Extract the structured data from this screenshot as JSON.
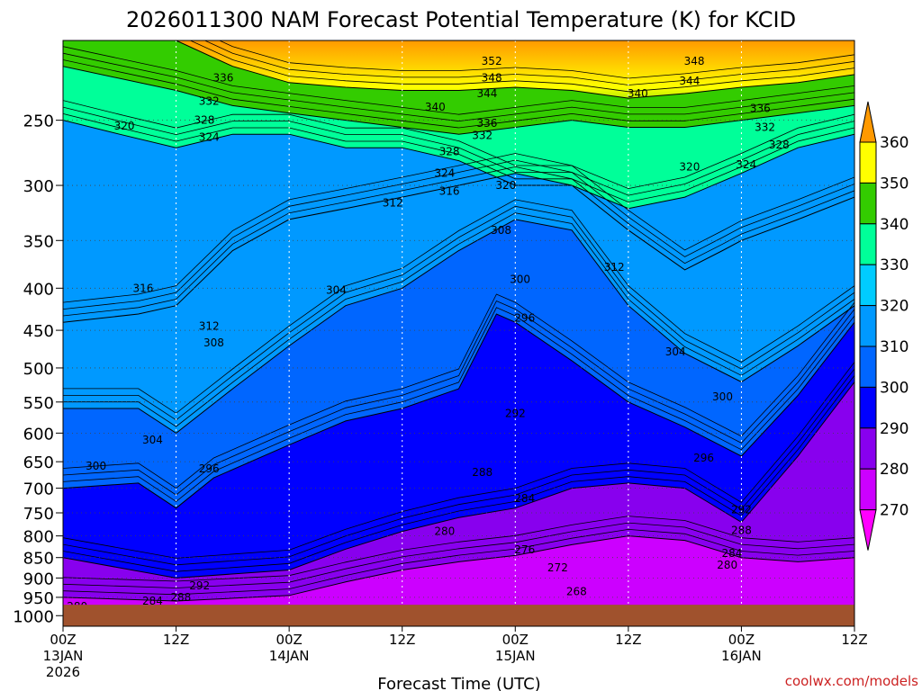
{
  "chart_data": {
    "type": "heatmap",
    "title": "2026011300 NAM Forecast Potential Temperature (K) for KCID",
    "xlabel": "Forecast Time (UTC)",
    "ylabel": "",
    "watermark": "coolwx.com/models",
    "x_ticks": [
      {
        "hour": 0,
        "label": "00Z",
        "sub1": "13JAN",
        "sub2": "2026"
      },
      {
        "hour": 12,
        "label": "12Z",
        "sub1": "",
        "sub2": ""
      },
      {
        "hour": 24,
        "label": "00Z",
        "sub1": "14JAN",
        "sub2": ""
      },
      {
        "hour": 36,
        "label": "12Z",
        "sub1": "",
        "sub2": ""
      },
      {
        "hour": 48,
        "label": "00Z",
        "sub1": "15JAN",
        "sub2": ""
      },
      {
        "hour": 60,
        "label": "12Z",
        "sub1": "",
        "sub2": ""
      },
      {
        "hour": 72,
        "label": "00Z",
        "sub1": "16JAN",
        "sub2": ""
      },
      {
        "hour": 84,
        "label": "12Z",
        "sub1": "",
        "sub2": ""
      }
    ],
    "xlim": [
      0,
      84
    ],
    "y_ticks": [
      250,
      300,
      350,
      400,
      450,
      500,
      550,
      600,
      650,
      700,
      750,
      800,
      850,
      900,
      950,
      1000
    ],
    "ylim": [
      1030,
      200
    ],
    "surface_pressure_mb": 970,
    "colorbar": {
      "labels": [
        360,
        350,
        340,
        330,
        320,
        310,
        300,
        290,
        280,
        270
      ],
      "colors": [
        "#ff9900",
        "#ffff00",
        "#33cc00",
        "#00ff99",
        "#00ccff",
        "#0099ff",
        "#0066ff",
        "#0000ff",
        "#8800ee",
        "#cc00ff",
        "#ff00ff"
      ]
    },
    "series": [
      {
        "name": "280",
        "value": 280,
        "points": [
          [
            0,
            950
          ],
          [
            12,
            960
          ],
          [
            24,
            945
          ],
          [
            30,
            910
          ],
          [
            36,
            880
          ],
          [
            42,
            860
          ],
          [
            48,
            845
          ],
          [
            54,
            820
          ],
          [
            60,
            800
          ],
          [
            66,
            810
          ],
          [
            72,
            850
          ],
          [
            78,
            860
          ],
          [
            84,
            850
          ]
        ]
      },
      {
        "name": "288",
        "value": 288,
        "points": [
          [
            0,
            850
          ],
          [
            12,
            900
          ],
          [
            24,
            880
          ],
          [
            30,
            830
          ],
          [
            36,
            790
          ],
          [
            42,
            760
          ],
          [
            48,
            740
          ],
          [
            54,
            700
          ],
          [
            60,
            690
          ],
          [
            66,
            700
          ],
          [
            72,
            770
          ],
          [
            78,
            640
          ],
          [
            84,
            520
          ]
        ]
      },
      {
        "name": "296",
        "value": 296,
        "points": [
          [
            0,
            700
          ],
          [
            8,
            690
          ],
          [
            12,
            740
          ],
          [
            16,
            680
          ],
          [
            24,
            620
          ],
          [
            30,
            580
          ],
          [
            36,
            560
          ],
          [
            42,
            530
          ],
          [
            46,
            430
          ],
          [
            48,
            440
          ],
          [
            54,
            490
          ],
          [
            60,
            550
          ],
          [
            66,
            590
          ],
          [
            72,
            640
          ],
          [
            78,
            540
          ],
          [
            84,
            440
          ]
        ]
      },
      {
        "name": "304",
        "value": 304,
        "points": [
          [
            0,
            560
          ],
          [
            8,
            560
          ],
          [
            12,
            600
          ],
          [
            18,
            530
          ],
          [
            24,
            470
          ],
          [
            30,
            420
          ],
          [
            36,
            400
          ],
          [
            42,
            360
          ],
          [
            48,
            330
          ],
          [
            54,
            340
          ],
          [
            60,
            420
          ],
          [
            66,
            480
          ],
          [
            72,
            520
          ],
          [
            78,
            470
          ],
          [
            84,
            420
          ]
        ]
      },
      {
        "name": "312",
        "value": 312,
        "points": [
          [
            0,
            440
          ],
          [
            8,
            430
          ],
          [
            12,
            420
          ],
          [
            18,
            360
          ],
          [
            24,
            330
          ],
          [
            30,
            320
          ],
          [
            36,
            310
          ],
          [
            42,
            300
          ],
          [
            48,
            290
          ],
          [
            54,
            300
          ],
          [
            60,
            340
          ],
          [
            66,
            380
          ],
          [
            70,
            360
          ],
          [
            72,
            350
          ],
          [
            78,
            330
          ],
          [
            84,
            310
          ]
        ]
      },
      {
        "name": "320",
        "value": 320,
        "points": [
          [
            0,
            250
          ],
          [
            6,
            260
          ],
          [
            12,
            270
          ],
          [
            18,
            260
          ],
          [
            24,
            260
          ],
          [
            30,
            270
          ],
          [
            36,
            270
          ],
          [
            42,
            280
          ],
          [
            48,
            300
          ],
          [
            54,
            300
          ],
          [
            60,
            320
          ],
          [
            66,
            310
          ],
          [
            72,
            290
          ],
          [
            78,
            270
          ],
          [
            84,
            260
          ]
        ]
      },
      {
        "name": "332",
        "value": 332,
        "points": [
          [
            0,
            215
          ],
          [
            12,
            230
          ],
          [
            18,
            240
          ],
          [
            24,
            245
          ],
          [
            30,
            250
          ],
          [
            36,
            255
          ],
          [
            42,
            260
          ],
          [
            48,
            255
          ],
          [
            54,
            250
          ],
          [
            60,
            255
          ],
          [
            66,
            255
          ],
          [
            72,
            250
          ],
          [
            78,
            245
          ],
          [
            84,
            240
          ]
        ]
      },
      {
        "name": "344",
        "value": 344,
        "points": [
          [
            0,
            200
          ],
          [
            12,
            200
          ],
          [
            18,
            215
          ],
          [
            24,
            225
          ],
          [
            30,
            228
          ],
          [
            36,
            230
          ],
          [
            42,
            230
          ],
          [
            48,
            228
          ],
          [
            54,
            230
          ],
          [
            60,
            235
          ],
          [
            66,
            232
          ],
          [
            72,
            228
          ],
          [
            78,
            225
          ],
          [
            84,
            220
          ]
        ]
      }
    ],
    "contour_labels": [
      {
        "text": "352",
        "h": 45.5,
        "p": 212
      },
      {
        "text": "348",
        "h": 45.5,
        "p": 222
      },
      {
        "text": "344",
        "h": 45.0,
        "p": 232
      },
      {
        "text": "340",
        "h": 39.5,
        "p": 241
      },
      {
        "text": "336",
        "h": 45.0,
        "p": 252
      },
      {
        "text": "332",
        "h": 44.5,
        "p": 261
      },
      {
        "text": "328",
        "h": 41.0,
        "p": 273
      },
      {
        "text": "324",
        "h": 40.5,
        "p": 290
      },
      {
        "text": "320",
        "h": 47.0,
        "p": 300
      },
      {
        "text": "316",
        "h": 41.0,
        "p": 305
      },
      {
        "text": "312",
        "h": 35.0,
        "p": 315
      },
      {
        "text": "308",
        "h": 46.5,
        "p": 340
      },
      {
        "text": "304",
        "h": 29.0,
        "p": 402
      },
      {
        "text": "300",
        "h": 48.5,
        "p": 390
      },
      {
        "text": "296",
        "h": 49.0,
        "p": 435
      },
      {
        "text": "292",
        "h": 48.0,
        "p": 568
      },
      {
        "text": "288",
        "h": 44.5,
        "p": 670
      },
      {
        "text": "284",
        "h": 49.0,
        "p": 720
      },
      {
        "text": "280",
        "h": 40.5,
        "p": 790
      },
      {
        "text": "276",
        "h": 49.0,
        "p": 832
      },
      {
        "text": "272",
        "h": 52.5,
        "p": 875
      },
      {
        "text": "268",
        "h": 54.5,
        "p": 935
      },
      {
        "text": "348",
        "h": 67.0,
        "p": 212
      },
      {
        "text": "344",
        "h": 66.5,
        "p": 224
      },
      {
        "text": "340",
        "h": 61.0,
        "p": 232
      },
      {
        "text": "336",
        "h": 74.0,
        "p": 242
      },
      {
        "text": "332",
        "h": 74.5,
        "p": 255
      },
      {
        "text": "328",
        "h": 76.0,
        "p": 268
      },
      {
        "text": "324",
        "h": 72.5,
        "p": 283
      },
      {
        "text": "320",
        "h": 66.5,
        "p": 285
      },
      {
        "text": "312",
        "h": 58.5,
        "p": 377
      },
      {
        "text": "304",
        "h": 65.0,
        "p": 478
      },
      {
        "text": "300",
        "h": 70.0,
        "p": 542
      },
      {
        "text": "296",
        "h": 68.0,
        "p": 643
      },
      {
        "text": "292",
        "h": 72.0,
        "p": 743
      },
      {
        "text": "288",
        "h": 72.0,
        "p": 788
      },
      {
        "text": "284",
        "h": 71.0,
        "p": 840
      },
      {
        "text": "280",
        "h": 70.5,
        "p": 868
      },
      {
        "text": "336",
        "h": 17.0,
        "p": 222
      },
      {
        "text": "332",
        "h": 15.5,
        "p": 237
      },
      {
        "text": "328",
        "h": 15.0,
        "p": 250
      },
      {
        "text": "324",
        "h": 15.5,
        "p": 262
      },
      {
        "text": "320",
        "h": 6.5,
        "p": 254
      },
      {
        "text": "316",
        "h": 8.5,
        "p": 400
      },
      {
        "text": "312",
        "h": 15.5,
        "p": 445
      },
      {
        "text": "308",
        "h": 16.0,
        "p": 466
      },
      {
        "text": "304",
        "h": 9.5,
        "p": 612
      },
      {
        "text": "300",
        "h": 3.5,
        "p": 658
      },
      {
        "text": "296",
        "h": 15.5,
        "p": 663
      },
      {
        "text": "292",
        "h": 14.5,
        "p": 920
      },
      {
        "text": "288",
        "h": 12.5,
        "p": 950
      },
      {
        "text": "284",
        "h": 9.5,
        "p": 960
      },
      {
        "text": "280",
        "h": 1.5,
        "p": 975
      }
    ]
  }
}
